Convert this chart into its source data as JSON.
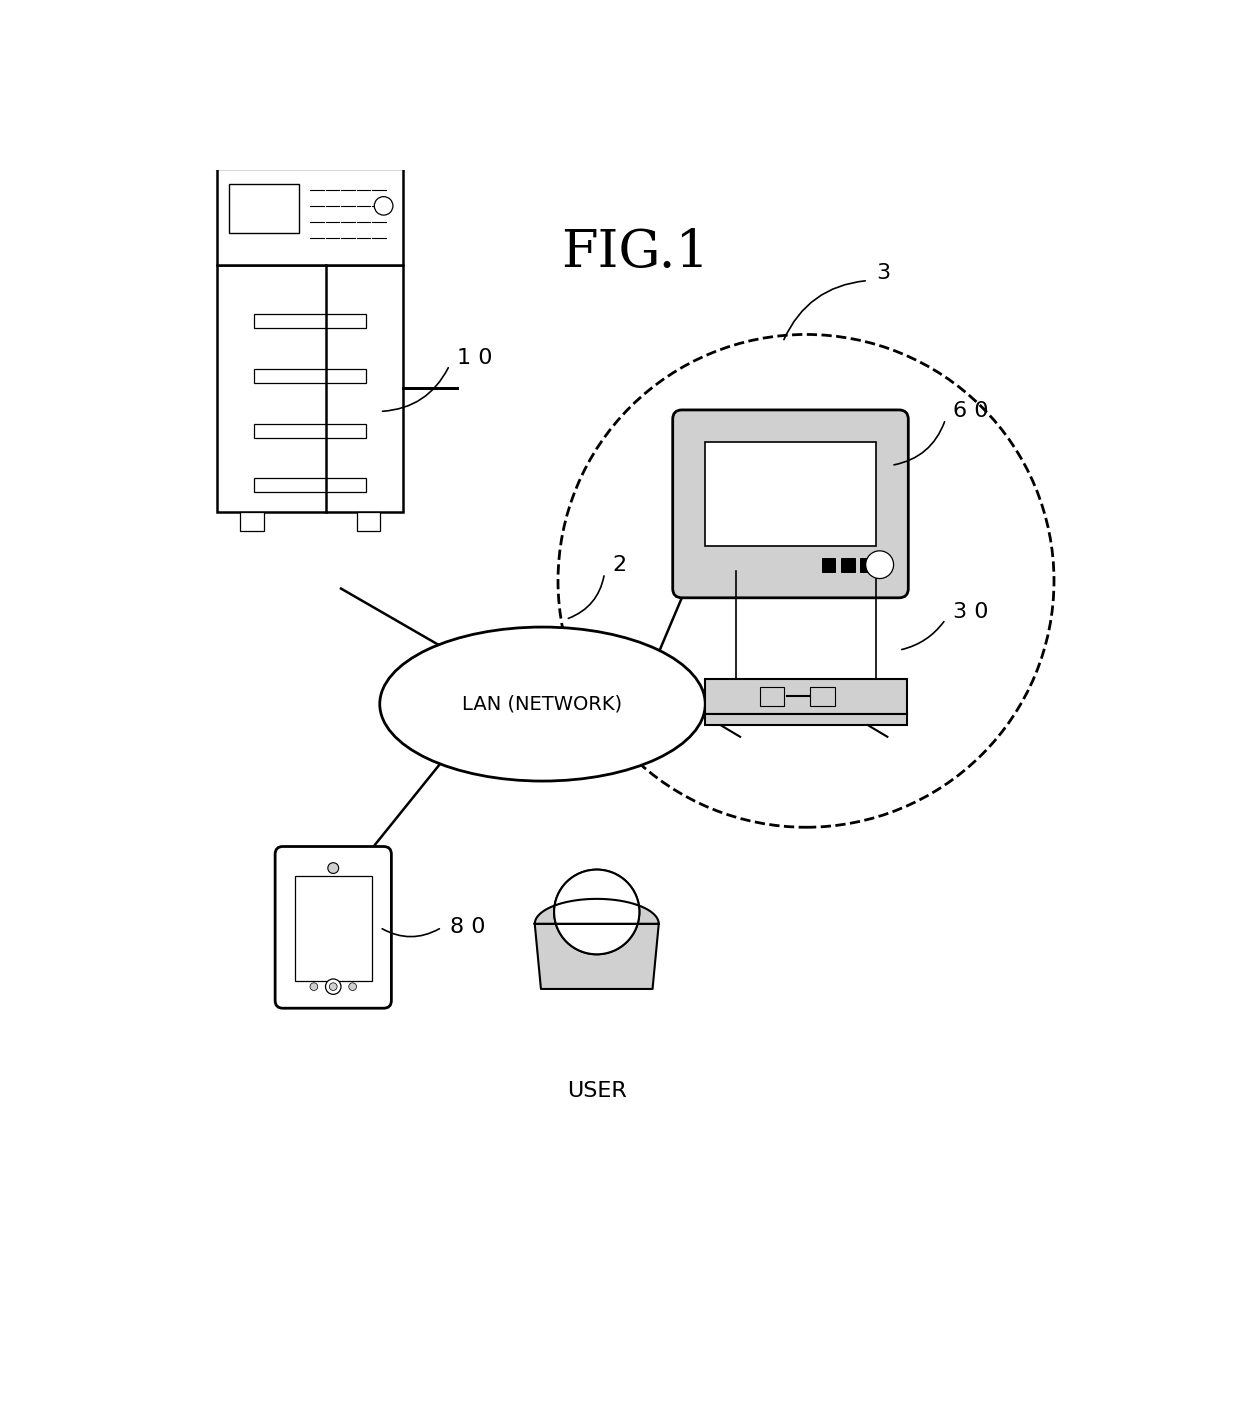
{
  "title": "FIG.1",
  "title_fontsize": 38,
  "background_color": "#ffffff",
  "fig_width": 12.4,
  "fig_height": 14.14,
  "label_10": "1 0",
  "label_2": "2",
  "label_3": "3",
  "label_60": "6 0",
  "label_30": "3 0",
  "label_80": "8 0",
  "label_user": "USER",
  "lan_text": "LAN (NETWORK)",
  "colors": {
    "black": "#000000",
    "white": "#ffffff",
    "light_gray": "#d0d0d0",
    "mid_gray": "#b0b0b0",
    "dark_gray": "#555555",
    "border": "#222222"
  }
}
